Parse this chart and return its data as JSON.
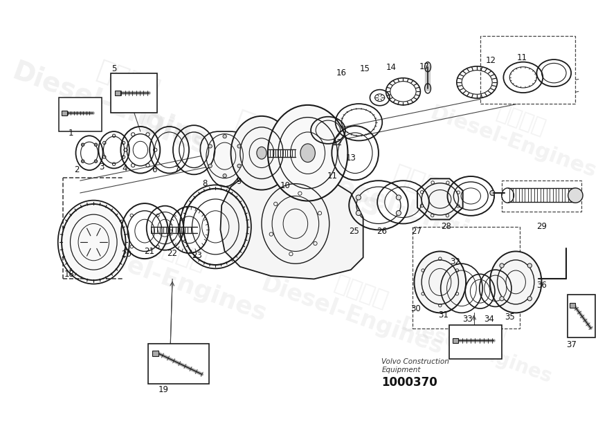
{
  "bg_color": "#ffffff",
  "dc": "#1a1a1a",
  "wc": "#e0e0e0",
  "fig_width": 8.9,
  "fig_height": 6.29,
  "dpi": 100,
  "manufacturer_line1": "Volvo Construction",
  "manufacturer_line2": "Equipment",
  "part_number": "1000370"
}
